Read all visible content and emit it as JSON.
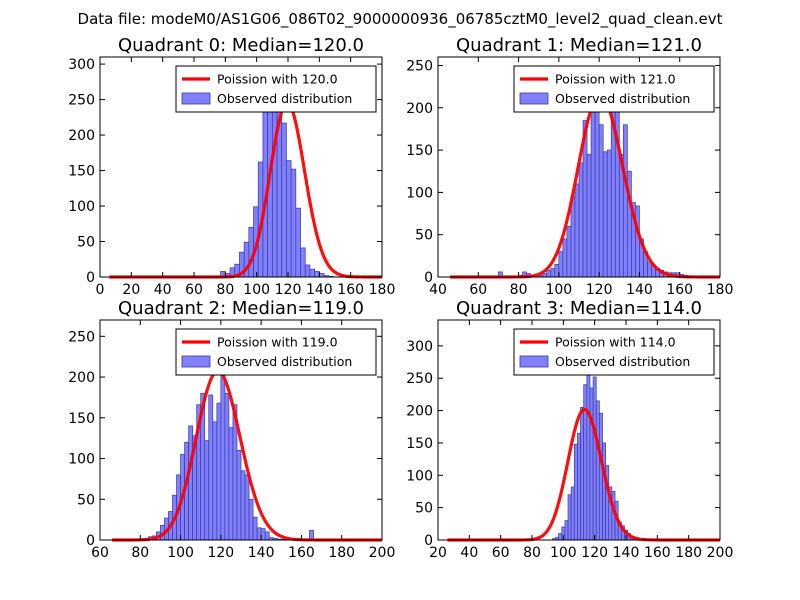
{
  "figure": {
    "suptitle": "Data file: modeM0/AS1G06_086T02_9000000936_06785cztM0_level2_quad_clean.evt",
    "colors": {
      "bar_fill": "#8080ff",
      "bar_edge": "#3a3a9a",
      "poisson_line": "#ff0000",
      "axes": "#000000"
    }
  },
  "chart_data": [
    {
      "type": "bar",
      "title": "Quadrant 0: Median=120.0",
      "median": 120.0,
      "xlim": [
        0,
        180
      ],
      "ylim": [
        0,
        310
      ],
      "xticks": [
        0,
        20,
        40,
        60,
        80,
        100,
        120,
        140,
        160,
        180
      ],
      "yticks": [
        0,
        50,
        100,
        150,
        200,
        250,
        300
      ],
      "bin_start": 74,
      "bin_width": 3,
      "values": [
        1,
        8,
        5,
        13,
        18,
        35,
        49,
        70,
        99,
        162,
        245,
        288,
        281,
        258,
        217,
        164,
        152,
        97,
        41,
        17,
        11,
        8,
        5,
        2,
        1
      ],
      "legend": {
        "line": "Poission with 120.0",
        "bars": "Observed distribution",
        "loc": "upper right"
      }
    },
    {
      "type": "bar",
      "title": "Quadrant 1: Median=121.0",
      "median": 121.0,
      "xlim": [
        40,
        180
      ],
      "ylim": [
        0,
        260
      ],
      "xticks": [
        40,
        60,
        80,
        100,
        120,
        140,
        160,
        180
      ],
      "yticks": [
        0,
        50,
        100,
        150,
        200,
        250
      ],
      "bin_start": 70,
      "bin_width": 2,
      "values": [
        6,
        0,
        0,
        0,
        0,
        2,
        6,
        4,
        1,
        0,
        2,
        4,
        8,
        10,
        15,
        30,
        45,
        60,
        95,
        110,
        135,
        185,
        145,
        205,
        228,
        180,
        148,
        150,
        228,
        198,
        145,
        180,
        125,
        88,
        84,
        45,
        30,
        18,
        14,
        10,
        8,
        6,
        5,
        5,
        5,
        3,
        2
      ],
      "legend": {
        "line": "Poission with 121.0",
        "bars": "Observed distribution",
        "loc": "upper right"
      }
    },
    {
      "type": "bar",
      "title": "Quadrant 2: Median=119.0",
      "median": 119.0,
      "xlim": [
        60,
        200
      ],
      "ylim": [
        0,
        270
      ],
      "xticks": [
        60,
        80,
        100,
        120,
        140,
        160,
        180,
        200
      ],
      "yticks": [
        0,
        50,
        100,
        150,
        200,
        250
      ],
      "bin_start": 80,
      "bin_width": 2,
      "values": [
        1,
        2,
        4,
        5,
        10,
        18,
        27,
        35,
        55,
        80,
        105,
        120,
        140,
        128,
        166,
        180,
        122,
        178,
        145,
        168,
        250,
        180,
        138,
        166,
        110,
        85,
        80,
        50,
        28,
        15,
        14,
        10,
        3,
        2,
        1,
        1,
        0,
        0,
        0,
        0,
        0,
        0,
        12,
        0,
        0,
        0,
        0,
        0,
        0,
        0,
        0,
        0,
        1
      ],
      "legend": {
        "line": "Poission with 119.0",
        "bars": "Observed distribution",
        "loc": "upper right"
      }
    },
    {
      "type": "bar",
      "title": "Quadrant 3: Median=114.0",
      "median": 114.0,
      "xlim": [
        20,
        200
      ],
      "ylim": [
        0,
        340
      ],
      "xticks": [
        20,
        40,
        60,
        80,
        100,
        120,
        140,
        160,
        180,
        200
      ],
      "yticks": [
        0,
        50,
        100,
        150,
        200,
        250,
        300
      ],
      "bin_start": 93,
      "bin_width": 2,
      "values": [
        2,
        4,
        10,
        20,
        30,
        70,
        82,
        148,
        165,
        205,
        240,
        258,
        235,
        252,
        215,
        196,
        150,
        115,
        82,
        75,
        60,
        28,
        22,
        15,
        10,
        5,
        3,
        2,
        1,
        1
      ],
      "legend": {
        "line": "Poission with 114.0",
        "bars": "Observed distribution",
        "loc": "upper right"
      }
    }
  ]
}
